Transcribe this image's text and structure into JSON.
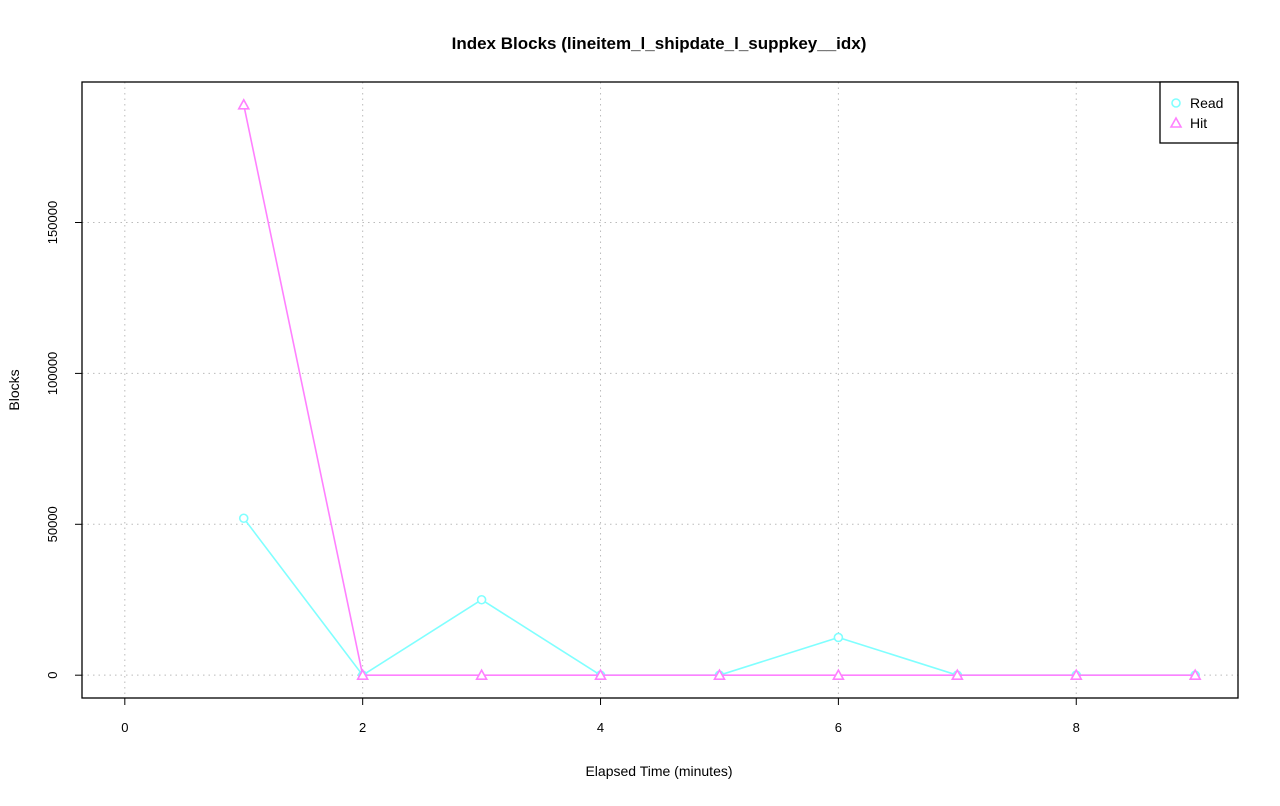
{
  "chart_data": {
    "type": "line",
    "title": "Index Blocks (lineitem_l_shipdate_l_suppkey__idx)",
    "xlabel": "Elapsed Time (minutes)",
    "ylabel": "Blocks",
    "xlim": [
      0,
      9
    ],
    "ylim": [
      0,
      189000
    ],
    "x_ticks": [
      0,
      2,
      4,
      6,
      8
    ],
    "y_ticks": [
      0,
      50000,
      100000,
      150000
    ],
    "grid": true,
    "legend_position": "top-right",
    "x": [
      1,
      2,
      3,
      4,
      5,
      6,
      7,
      8,
      9
    ],
    "series": [
      {
        "name": "Read",
        "color": "#80FFFF",
        "marker": "circle",
        "values": [
          52000,
          0,
          25000,
          0,
          0,
          12500,
          0,
          0,
          0
        ]
      },
      {
        "name": "Hit",
        "color": "#FF80FF",
        "marker": "triangle",
        "values": [
          189000,
          0,
          0,
          0,
          0,
          0,
          0,
          0,
          0
        ]
      }
    ]
  }
}
